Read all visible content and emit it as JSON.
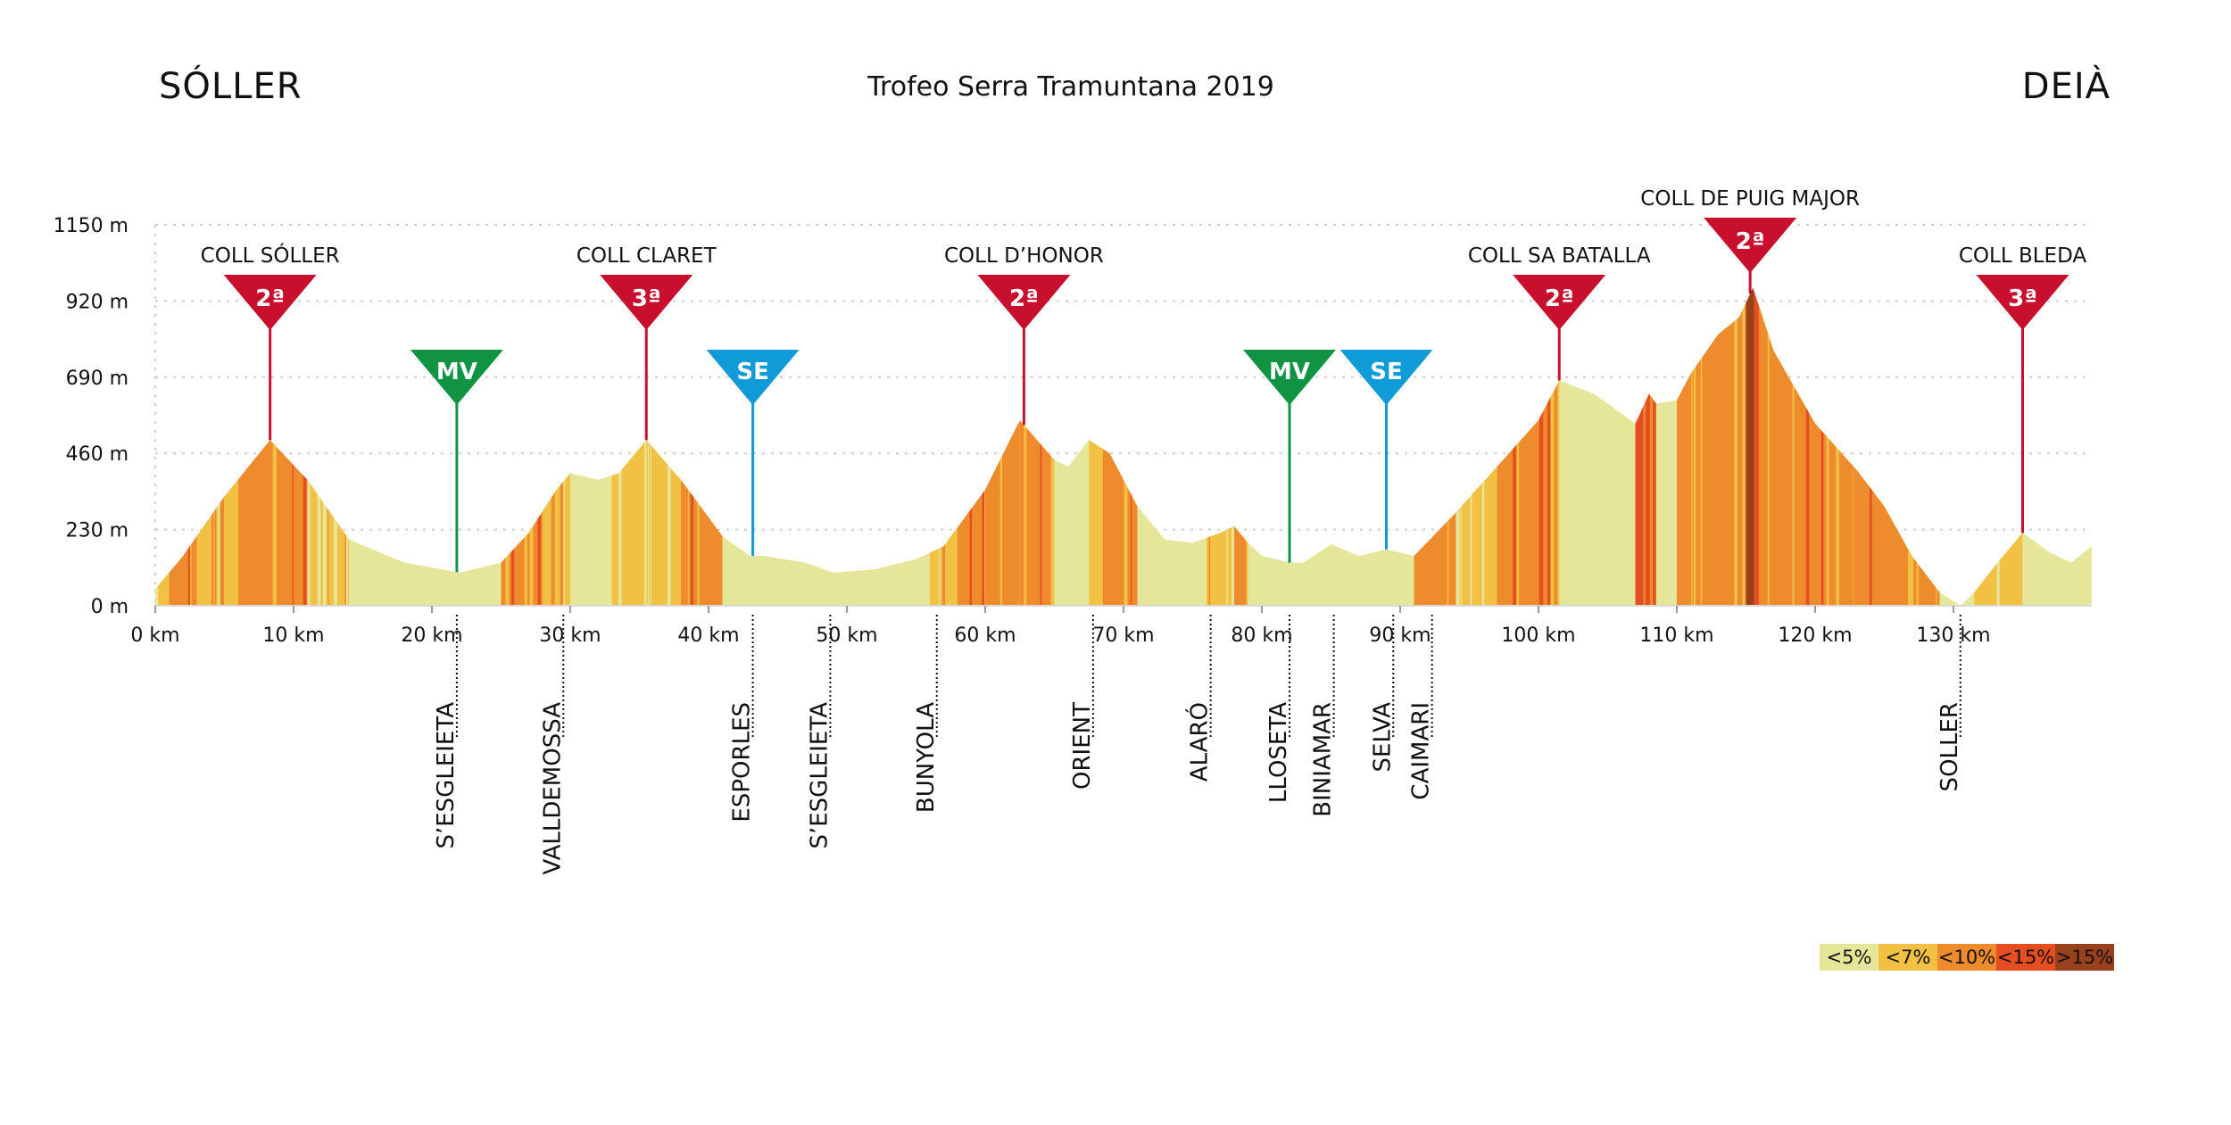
{
  "header": {
    "start_town": "SÓLLER",
    "title": "Trofeo Serra Tramuntana 2019",
    "end_town": "DEIÀ"
  },
  "colors": {
    "lt5": "#e6e69b",
    "lt7": "#f2c143",
    "lt10": "#ee8c2d",
    "lt15": "#e64e22",
    "gt15": "#99401d",
    "climb_marker": "#c8102e",
    "mv_marker": "#109444",
    "se_marker": "#0e9bd7",
    "grid": "#cfcfcf",
    "axis_text": "#111111"
  },
  "legend": [
    {
      "label": "<5%",
      "color": "#e6e69b"
    },
    {
      "label": "<7%",
      "color": "#f2c143"
    },
    {
      "label": "<10%",
      "color": "#ee8c2d"
    },
    {
      "label": "<15%",
      "color": "#e64e22"
    },
    {
      "label": ">15%",
      "color": "#99401d"
    }
  ],
  "chart_data": {
    "type": "area",
    "title": "Trofeo Serra Tramuntana 2019",
    "xlabel": "",
    "ylabel": "",
    "x_unit": "km",
    "y_unit": "m",
    "xlim": [
      0,
      140
    ],
    "ylim": [
      0,
      1150
    ],
    "grid": "horizontal-dotted",
    "legend_position": "bottom-right",
    "x_ticks": [
      0,
      10,
      20,
      30,
      40,
      50,
      60,
      70,
      80,
      90,
      100,
      110,
      120,
      130
    ],
    "x_tick_labels": [
      "0 km",
      "10 km",
      "20 km",
      "30 km",
      "40 km",
      "50 km",
      "60 km",
      "70 km",
      "80 km",
      "90 km",
      "100 km",
      "110 km",
      "120 km",
      "130 km"
    ],
    "y_ticks": [
      0,
      230,
      460,
      690,
      920,
      1150
    ],
    "y_tick_labels": [
      "0 m",
      "230 m",
      "460 m",
      "690 m",
      "920 m",
      "1150 m"
    ],
    "profile": {
      "km": [
        0,
        2,
        5,
        8.3,
        11,
        14,
        18,
        22,
        25,
        27,
        29,
        30,
        32,
        33.5,
        35.5,
        38,
        41,
        43,
        44,
        47,
        49,
        52,
        55,
        57,
        60,
        62.5,
        65,
        66,
        67.5,
        69,
        71,
        73,
        75,
        77,
        78,
        79,
        80,
        82,
        83,
        85,
        87,
        89,
        91,
        94,
        97,
        100,
        101.5,
        104,
        106,
        107,
        108,
        108.5,
        110,
        111,
        113,
        114.5,
        115.5,
        117,
        120,
        123,
        125,
        127,
        129,
        130.5,
        131.5,
        133,
        135,
        137,
        138.5,
        140
      ],
      "alt_m": [
        50,
        150,
        330,
        500,
        380,
        200,
        130,
        100,
        130,
        220,
        350,
        400,
        380,
        400,
        500,
        380,
        210,
        150,
        150,
        130,
        100,
        110,
        140,
        180,
        350,
        560,
        440,
        420,
        500,
        460,
        300,
        200,
        190,
        220,
        240,
        190,
        150,
        130,
        130,
        185,
        150,
        170,
        150,
        280,
        420,
        560,
        680,
        640,
        580,
        550,
        640,
        610,
        620,
        700,
        820,
        870,
        960,
        770,
        550,
        410,
        300,
        150,
        40,
        0,
        40,
        120,
        220,
        160,
        130,
        180
      ]
    },
    "gradient_bands": [
      {
        "from_km": 0,
        "to_km": 1,
        "class": "<7%"
      },
      {
        "from_km": 1,
        "to_km": 3,
        "class": "<10%"
      },
      {
        "from_km": 3,
        "to_km": 6,
        "class": "<7%"
      },
      {
        "from_km": 6,
        "to_km": 8.3,
        "class": "<10%"
      },
      {
        "from_km": 8.3,
        "to_km": 11,
        "class": "<10%"
      },
      {
        "from_km": 11,
        "to_km": 14,
        "class": "<7%"
      },
      {
        "from_km": 14,
        "to_km": 25,
        "class": "<5%"
      },
      {
        "from_km": 25,
        "to_km": 28,
        "class": "<10%"
      },
      {
        "from_km": 28,
        "to_km": 30,
        "class": "<7%"
      },
      {
        "from_km": 30,
        "to_km": 33,
        "class": "<5%"
      },
      {
        "from_km": 33,
        "to_km": 35.5,
        "class": "<7%"
      },
      {
        "from_km": 35.5,
        "to_km": 38,
        "class": "<7%"
      },
      {
        "from_km": 38,
        "to_km": 41,
        "class": "<10%"
      },
      {
        "from_km": 41,
        "to_km": 56,
        "class": "<5%"
      },
      {
        "from_km": 56,
        "to_km": 58,
        "class": "<7%"
      },
      {
        "from_km": 58,
        "to_km": 60,
        "class": "<10%"
      },
      {
        "from_km": 60,
        "to_km": 62.5,
        "class": "<10%"
      },
      {
        "from_km": 62.5,
        "to_km": 65,
        "class": "<10%"
      },
      {
        "from_km": 65,
        "to_km": 67.5,
        "class": "<5%"
      },
      {
        "from_km": 67.5,
        "to_km": 68.5,
        "class": "<7%"
      },
      {
        "from_km": 68.5,
        "to_km": 71,
        "class": "<10%"
      },
      {
        "from_km": 71,
        "to_km": 76,
        "class": "<5%"
      },
      {
        "from_km": 76,
        "to_km": 78,
        "class": "<7%"
      },
      {
        "from_km": 78,
        "to_km": 79,
        "class": "<10%"
      },
      {
        "from_km": 79,
        "to_km": 91,
        "class": "<5%"
      },
      {
        "from_km": 91,
        "to_km": 94,
        "class": "<10%"
      },
      {
        "from_km": 94,
        "to_km": 97,
        "class": "<7%"
      },
      {
        "from_km": 97,
        "to_km": 101.5,
        "class": "<10%"
      },
      {
        "from_km": 101.5,
        "to_km": 107,
        "class": "<5%"
      },
      {
        "from_km": 107,
        "to_km": 108.5,
        "class": "<15%"
      },
      {
        "from_km": 108.5,
        "to_km": 110,
        "class": "<5%"
      },
      {
        "from_km": 110,
        "to_km": 113,
        "class": "<10%"
      },
      {
        "from_km": 113,
        "to_km": 115,
        "class": "<10%"
      },
      {
        "from_km": 115,
        "to_km": 115.6,
        "class": ">15%"
      },
      {
        "from_km": 115.6,
        "to_km": 116.2,
        "class": "<15%"
      },
      {
        "from_km": 116.2,
        "to_km": 123,
        "class": "<10%"
      },
      {
        "from_km": 123,
        "to_km": 129,
        "class": "<10%"
      },
      {
        "from_km": 129,
        "to_km": 131.5,
        "class": "<5%"
      },
      {
        "from_km": 131.5,
        "to_km": 135,
        "class": "<7%"
      },
      {
        "from_km": 135,
        "to_km": 140,
        "class": "<5%"
      }
    ],
    "climbs": [
      {
        "name": "COLL SÓLLER",
        "category": "2ª",
        "km": 8.3
      },
      {
        "name": "COLL CLARET",
        "category": "3ª",
        "km": 35.5
      },
      {
        "name": "COLL D’HONOR",
        "category": "2ª",
        "km": 62.8
      },
      {
        "name": "COLL SA BATALLA",
        "category": "2ª",
        "km": 101.5
      },
      {
        "name": "COLL DE PUIG MAJOR",
        "category": "2ª",
        "km": 115.3
      },
      {
        "name": "COLL BLEDA",
        "category": "3ª",
        "km": 135
      }
    ],
    "sprints": [
      {
        "label": "MV",
        "kind": "mv",
        "km": 21.8
      },
      {
        "label": "SE",
        "kind": "se",
        "km": 43.2
      },
      {
        "label": "MV",
        "kind": "mv",
        "km": 82
      },
      {
        "label": "SE",
        "kind": "se",
        "km": 89
      }
    ],
    "towns": [
      {
        "name": "S’ESGLEIETA",
        "km": 21.8
      },
      {
        "name": "VALLDEMOSSA",
        "km": 29.5
      },
      {
        "name": "ESPORLES",
        "km": 43.2
      },
      {
        "name": "S’ESGLEIETA",
        "km": 48.8
      },
      {
        "name": "BUNYOLA",
        "km": 56.5
      },
      {
        "name": "ORIENT",
        "km": 67.8
      },
      {
        "name": "ALARÓ",
        "km": 76.3
      },
      {
        "name": "LLOSETA",
        "km": 82
      },
      {
        "name": "BINIAMAR",
        "km": 85.2
      },
      {
        "name": "SELVA",
        "km": 89.5
      },
      {
        "name": "CAIMARI",
        "km": 92.3
      },
      {
        "name": "SOLLER",
        "km": 130.5
      }
    ]
  }
}
